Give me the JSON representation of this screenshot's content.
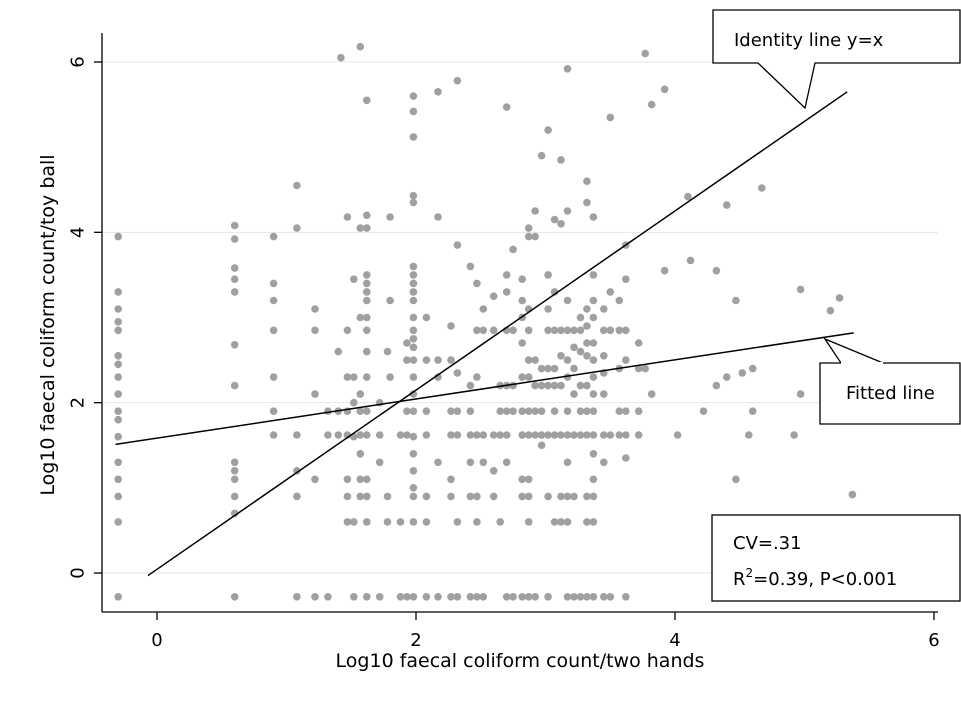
{
  "chart_data": {
    "type": "scatter",
    "xlabel": "Log10 faecal coliform count/two hands",
    "ylabel": "Log10 faecal coliform count/toy ball",
    "xlim": [
      -0.45,
      6.1
    ],
    "ylim": [
      -0.45,
      6.45
    ],
    "xticks": [
      0,
      2,
      4,
      6
    ],
    "xtick_labels": [
      "0",
      "2",
      "4",
      "6"
    ],
    "yticks": [
      0,
      2,
      4,
      6
    ],
    "ytick_labels": [
      "0",
      "2",
      "4",
      "6"
    ],
    "grid": "horizontal",
    "point_color": "#a0a0a0",
    "lines": [
      {
        "id": "identity",
        "x": [
          -0.07,
          5.33
        ],
        "y": [
          -0.03,
          5.65
        ]
      },
      {
        "id": "fitted",
        "x": [
          -0.32,
          5.38
        ],
        "y": [
          1.51,
          2.82
        ]
      }
    ],
    "annotations": {
      "identity": "Identity line y=x",
      "fitted": "Fitted line",
      "cv": "CV=.31",
      "r2_prefix": "R",
      "r2_superscript": "2",
      "r2_suffix": "=0.39, P<0.001"
    },
    "points": [
      [
        -0.3,
        3.95
      ],
      [
        -0.3,
        3.3
      ],
      [
        -0.3,
        3.1
      ],
      [
        -0.3,
        2.95
      ],
      [
        -0.3,
        2.85
      ],
      [
        -0.3,
        2.55
      ],
      [
        -0.3,
        2.45
      ],
      [
        -0.3,
        2.3
      ],
      [
        -0.3,
        2.1
      ],
      [
        -0.3,
        1.9
      ],
      [
        -0.3,
        1.8
      ],
      [
        -0.3,
        1.6
      ],
      [
        -0.3,
        1.3
      ],
      [
        -0.3,
        1.1
      ],
      [
        -0.3,
        0.9
      ],
      [
        -0.3,
        0.6
      ],
      [
        -0.3,
        -0.28
      ],
      [
        0.6,
        4.08
      ],
      [
        0.6,
        3.92
      ],
      [
        0.6,
        3.58
      ],
      [
        0.6,
        3.45
      ],
      [
        0.6,
        3.3
      ],
      [
        0.6,
        2.68
      ],
      [
        0.6,
        2.2
      ],
      [
        0.6,
        1.3
      ],
      [
        0.6,
        1.2
      ],
      [
        0.6,
        1.1
      ],
      [
        0.6,
        0.9
      ],
      [
        0.6,
        0.7
      ],
      [
        0.6,
        -0.28
      ],
      [
        0.9,
        3.95
      ],
      [
        0.9,
        3.4
      ],
      [
        0.9,
        3.2
      ],
      [
        0.9,
        2.85
      ],
      [
        0.9,
        2.3
      ],
      [
        0.9,
        1.9
      ],
      [
        0.9,
        1.62
      ],
      [
        1.08,
        4.55
      ],
      [
        1.08,
        4.05
      ],
      [
        1.08,
        1.62
      ],
      [
        1.08,
        1.2
      ],
      [
        1.08,
        0.9
      ],
      [
        1.08,
        -0.28
      ],
      [
        1.22,
        3.1
      ],
      [
        1.22,
        2.85
      ],
      [
        1.22,
        2.1
      ],
      [
        1.22,
        1.1
      ],
      [
        1.22,
        -0.28
      ],
      [
        1.32,
        1.9
      ],
      [
        1.32,
        1.62
      ],
      [
        1.32,
        -0.28
      ],
      [
        1.4,
        1.9
      ],
      [
        1.4,
        1.62
      ],
      [
        1.4,
        2.6
      ],
      [
        1.42,
        6.05
      ],
      [
        1.47,
        4.18
      ],
      [
        1.47,
        2.85
      ],
      [
        1.47,
        2.3
      ],
      [
        1.47,
        1.9
      ],
      [
        1.47,
        1.62
      ],
      [
        1.47,
        1.1
      ],
      [
        1.47,
        0.9
      ],
      [
        1.47,
        0.6
      ],
      [
        1.52,
        3.45
      ],
      [
        1.52,
        2.3
      ],
      [
        1.52,
        2.0
      ],
      [
        1.52,
        1.6
      ],
      [
        1.52,
        0.6
      ],
      [
        1.52,
        -0.28
      ],
      [
        1.57,
        6.18
      ],
      [
        1.57,
        4.05
      ],
      [
        1.57,
        3.0
      ],
      [
        1.57,
        2.1
      ],
      [
        1.57,
        1.9
      ],
      [
        1.57,
        1.62
      ],
      [
        1.57,
        1.4
      ],
      [
        1.57,
        1.1
      ],
      [
        1.57,
        0.9
      ],
      [
        1.62,
        5.55
      ],
      [
        1.62,
        4.2
      ],
      [
        1.62,
        4.05
      ],
      [
        1.62,
        3.5
      ],
      [
        1.62,
        3.4
      ],
      [
        1.62,
        3.3
      ],
      [
        1.62,
        3.2
      ],
      [
        1.62,
        3.0
      ],
      [
        1.62,
        2.85
      ],
      [
        1.62,
        2.6
      ],
      [
        1.62,
        2.3
      ],
      [
        1.62,
        1.9
      ],
      [
        1.62,
        1.62
      ],
      [
        1.62,
        1.1
      ],
      [
        1.62,
        0.9
      ],
      [
        1.62,
        0.6
      ],
      [
        1.62,
        -0.28
      ],
      [
        1.72,
        2.0
      ],
      [
        1.72,
        1.62
      ],
      [
        1.72,
        1.3
      ],
      [
        1.72,
        -0.28
      ],
      [
        1.78,
        2.6
      ],
      [
        1.78,
        0.6
      ],
      [
        1.78,
        0.9
      ],
      [
        1.8,
        4.18
      ],
      [
        1.8,
        3.2
      ],
      [
        1.8,
        2.3
      ],
      [
        1.88,
        1.62
      ],
      [
        1.88,
        0.6
      ],
      [
        1.88,
        -0.28
      ],
      [
        1.93,
        2.7
      ],
      [
        1.93,
        2.5
      ],
      [
        1.93,
        1.9
      ],
      [
        1.93,
        1.62
      ],
      [
        1.93,
        -0.28
      ],
      [
        1.98,
        5.6
      ],
      [
        1.98,
        5.42
      ],
      [
        1.98,
        5.12
      ],
      [
        1.98,
        4.43
      ],
      [
        1.98,
        4.35
      ],
      [
        1.98,
        3.6
      ],
      [
        1.98,
        3.5
      ],
      [
        1.98,
        3.4
      ],
      [
        1.98,
        3.3
      ],
      [
        1.98,
        3.2
      ],
      [
        1.98,
        3.0
      ],
      [
        1.98,
        2.85
      ],
      [
        1.98,
        2.75
      ],
      [
        1.98,
        2.65
      ],
      [
        1.98,
        2.5
      ],
      [
        1.98,
        2.3
      ],
      [
        1.98,
        2.1
      ],
      [
        1.98,
        1.9
      ],
      [
        1.98,
        1.6
      ],
      [
        1.98,
        1.4
      ],
      [
        1.98,
        1.2
      ],
      [
        1.98,
        1.0
      ],
      [
        1.98,
        0.9
      ],
      [
        1.98,
        0.6
      ],
      [
        1.98,
        -0.28
      ],
      [
        2.08,
        3.0
      ],
      [
        2.08,
        2.5
      ],
      [
        2.08,
        1.9
      ],
      [
        2.08,
        1.62
      ],
      [
        2.08,
        0.9
      ],
      [
        2.08,
        0.6
      ],
      [
        2.08,
        -0.28
      ],
      [
        2.17,
        5.65
      ],
      [
        2.17,
        4.18
      ],
      [
        2.17,
        2.5
      ],
      [
        2.17,
        2.3
      ],
      [
        2.17,
        1.3
      ],
      [
        2.17,
        -0.28
      ],
      [
        2.27,
        2.9
      ],
      [
        2.27,
        2.5
      ],
      [
        2.27,
        1.9
      ],
      [
        2.27,
        1.62
      ],
      [
        2.27,
        1.1
      ],
      [
        2.27,
        0.9
      ],
      [
        2.27,
        -0.28
      ],
      [
        2.32,
        5.78
      ],
      [
        2.32,
        3.85
      ],
      [
        2.32,
        2.35
      ],
      [
        2.32,
        1.9
      ],
      [
        2.32,
        1.62
      ],
      [
        2.32,
        0.6
      ],
      [
        2.32,
        -0.28
      ],
      [
        2.42,
        3.6
      ],
      [
        2.42,
        2.2
      ],
      [
        2.42,
        1.9
      ],
      [
        2.42,
        1.62
      ],
      [
        2.42,
        1.3
      ],
      [
        2.42,
        0.9
      ],
      [
        2.42,
        -0.28
      ],
      [
        2.47,
        3.4
      ],
      [
        2.47,
        2.85
      ],
      [
        2.47,
        2.3
      ],
      [
        2.47,
        1.62
      ],
      [
        2.47,
        0.9
      ],
      [
        2.47,
        0.6
      ],
      [
        2.47,
        -0.28
      ],
      [
        2.52,
        3.1
      ],
      [
        2.52,
        2.85
      ],
      [
        2.52,
        1.62
      ],
      [
        2.52,
        1.3
      ],
      [
        2.52,
        -0.28
      ],
      [
        2.6,
        3.25
      ],
      [
        2.6,
        2.85
      ],
      [
        2.6,
        1.62
      ],
      [
        2.6,
        1.2
      ],
      [
        2.6,
        0.9
      ],
      [
        2.65,
        2.2
      ],
      [
        2.65,
        1.9
      ],
      [
        2.65,
        1.62
      ],
      [
        2.65,
        0.6
      ],
      [
        2.7,
        5.47
      ],
      [
        2.7,
        3.5
      ],
      [
        2.7,
        3.3
      ],
      [
        2.7,
        2.85
      ],
      [
        2.7,
        2.2
      ],
      [
        2.7,
        1.9
      ],
      [
        2.7,
        1.62
      ],
      [
        2.7,
        1.3
      ],
      [
        2.7,
        -0.28
      ],
      [
        2.75,
        3.8
      ],
      [
        2.75,
        2.85
      ],
      [
        2.75,
        2.2
      ],
      [
        2.75,
        1.9
      ],
      [
        2.75,
        -0.28
      ],
      [
        2.82,
        3.45
      ],
      [
        2.82,
        3.2
      ],
      [
        2.82,
        3.0
      ],
      [
        2.82,
        2.7
      ],
      [
        2.82,
        2.3
      ],
      [
        2.82,
        1.9
      ],
      [
        2.82,
        1.62
      ],
      [
        2.82,
        1.1
      ],
      [
        2.82,
        0.9
      ],
      [
        2.82,
        -0.28
      ],
      [
        2.87,
        4.05
      ],
      [
        2.87,
        3.95
      ],
      [
        2.87,
        3.1
      ],
      [
        2.87,
        2.85
      ],
      [
        2.87,
        2.5
      ],
      [
        2.87,
        2.3
      ],
      [
        2.87,
        1.9
      ],
      [
        2.87,
        1.62
      ],
      [
        2.87,
        1.1
      ],
      [
        2.87,
        0.9
      ],
      [
        2.87,
        0.6
      ],
      [
        2.87,
        -0.28
      ],
      [
        2.92,
        4.25
      ],
      [
        2.92,
        3.95
      ],
      [
        2.92,
        2.5
      ],
      [
        2.92,
        2.2
      ],
      [
        2.92,
        1.9
      ],
      [
        2.92,
        1.62
      ],
      [
        2.92,
        -0.28
      ],
      [
        2.97,
        4.9
      ],
      [
        2.97,
        2.4
      ],
      [
        2.97,
        2.2
      ],
      [
        2.97,
        1.9
      ],
      [
        2.97,
        1.62
      ],
      [
        2.97,
        1.5
      ],
      [
        3.02,
        5.2
      ],
      [
        3.02,
        3.5
      ],
      [
        3.02,
        3.1
      ],
      [
        3.02,
        2.85
      ],
      [
        3.02,
        2.4
      ],
      [
        3.02,
        2.2
      ],
      [
        3.02,
        1.62
      ],
      [
        3.02,
        0.9
      ],
      [
        3.02,
        -0.28
      ],
      [
        3.07,
        4.15
      ],
      [
        3.07,
        3.3
      ],
      [
        3.07,
        2.85
      ],
      [
        3.07,
        2.4
      ],
      [
        3.07,
        2.2
      ],
      [
        3.07,
        1.9
      ],
      [
        3.07,
        1.62
      ],
      [
        3.07,
        0.6
      ],
      [
        3.12,
        4.85
      ],
      [
        3.12,
        4.1
      ],
      [
        3.12,
        2.85
      ],
      [
        3.12,
        2.55
      ],
      [
        3.12,
        2.2
      ],
      [
        3.12,
        1.62
      ],
      [
        3.12,
        0.9
      ],
      [
        3.12,
        0.6
      ],
      [
        3.17,
        5.92
      ],
      [
        3.17,
        4.25
      ],
      [
        3.17,
        3.2
      ],
      [
        3.17,
        2.85
      ],
      [
        3.17,
        2.5
      ],
      [
        3.17,
        2.3
      ],
      [
        3.17,
        1.9
      ],
      [
        3.17,
        1.62
      ],
      [
        3.17,
        1.3
      ],
      [
        3.17,
        0.9
      ],
      [
        3.17,
        0.6
      ],
      [
        3.17,
        -0.28
      ],
      [
        3.22,
        2.85
      ],
      [
        3.22,
        2.65
      ],
      [
        3.22,
        2.4
      ],
      [
        3.22,
        2.1
      ],
      [
        3.22,
        1.62
      ],
      [
        3.22,
        0.9
      ],
      [
        3.22,
        -0.28
      ],
      [
        3.27,
        3.0
      ],
      [
        3.27,
        2.85
      ],
      [
        3.27,
        2.6
      ],
      [
        3.27,
        2.2
      ],
      [
        3.27,
        1.9
      ],
      [
        3.27,
        1.62
      ],
      [
        3.27,
        -0.28
      ],
      [
        3.32,
        4.6
      ],
      [
        3.32,
        4.35
      ],
      [
        3.32,
        3.1
      ],
      [
        3.32,
        2.9
      ],
      [
        3.32,
        2.7
      ],
      [
        3.32,
        2.55
      ],
      [
        3.32,
        2.2
      ],
      [
        3.32,
        1.9
      ],
      [
        3.32,
        1.62
      ],
      [
        3.32,
        0.9
      ],
      [
        3.32,
        0.6
      ],
      [
        3.32,
        -0.28
      ],
      [
        3.37,
        4.18
      ],
      [
        3.37,
        3.5
      ],
      [
        3.37,
        3.2
      ],
      [
        3.37,
        3.0
      ],
      [
        3.37,
        2.7
      ],
      [
        3.37,
        2.5
      ],
      [
        3.37,
        2.3
      ],
      [
        3.37,
        2.1
      ],
      [
        3.37,
        1.9
      ],
      [
        3.37,
        1.62
      ],
      [
        3.37,
        1.4
      ],
      [
        3.37,
        1.1
      ],
      [
        3.37,
        0.9
      ],
      [
        3.37,
        0.6
      ],
      [
        3.37,
        -0.28
      ],
      [
        3.45,
        3.1
      ],
      [
        3.45,
        2.85
      ],
      [
        3.45,
        2.55
      ],
      [
        3.45,
        2.35
      ],
      [
        3.45,
        2.1
      ],
      [
        3.45,
        1.62
      ],
      [
        3.45,
        1.3
      ],
      [
        3.45,
        -0.28
      ],
      [
        3.5,
        5.35
      ],
      [
        3.5,
        3.3
      ],
      [
        3.5,
        2.85
      ],
      [
        3.5,
        1.62
      ],
      [
        3.5,
        -0.28
      ],
      [
        3.57,
        3.2
      ],
      [
        3.57,
        2.85
      ],
      [
        3.57,
        2.4
      ],
      [
        3.57,
        1.9
      ],
      [
        3.57,
        1.62
      ],
      [
        3.62,
        3.85
      ],
      [
        3.62,
        3.45
      ],
      [
        3.62,
        2.85
      ],
      [
        3.62,
        2.5
      ],
      [
        3.62,
        1.9
      ],
      [
        3.62,
        1.62
      ],
      [
        3.62,
        1.35
      ],
      [
        3.62,
        -0.28
      ],
      [
        3.72,
        2.7
      ],
      [
        3.72,
        2.4
      ],
      [
        3.72,
        1.9
      ],
      [
        3.72,
        1.62
      ],
      [
        3.77,
        6.1
      ],
      [
        3.77,
        2.4
      ],
      [
        3.82,
        5.5
      ],
      [
        3.82,
        2.1
      ],
      [
        3.92,
        5.68
      ],
      [
        3.92,
        3.55
      ],
      [
        4.02,
        1.62
      ],
      [
        4.1,
        4.42
      ],
      [
        4.12,
        3.67
      ],
      [
        4.22,
        1.9
      ],
      [
        4.32,
        3.55
      ],
      [
        4.32,
        2.2
      ],
      [
        4.4,
        4.32
      ],
      [
        4.4,
        2.3
      ],
      [
        4.47,
        3.2
      ],
      [
        4.47,
        1.1
      ],
      [
        4.52,
        2.35
      ],
      [
        4.57,
        1.62
      ],
      [
        4.6,
        2.4
      ],
      [
        4.6,
        1.9
      ],
      [
        4.67,
        4.52
      ],
      [
        4.92,
        1.62
      ],
      [
        4.97,
        3.33
      ],
      [
        4.97,
        2.1
      ],
      [
        5.2,
        3.08
      ],
      [
        5.27,
        3.23
      ],
      [
        5.37,
        0.92
      ]
    ]
  }
}
